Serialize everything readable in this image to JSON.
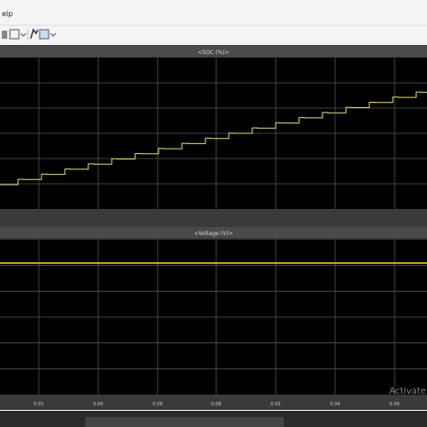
{
  "menu": {
    "help": "elp"
  },
  "panels": [
    {
      "title": "<SOC (%)>"
    },
    {
      "title": "<Voltage (V)>"
    }
  ],
  "x_tick_labels": [
    "0.01",
    "0.06",
    "0.08",
    "0.08",
    "0.02",
    "0.04",
    "0.06"
  ],
  "watermark": "Activate W"
}
